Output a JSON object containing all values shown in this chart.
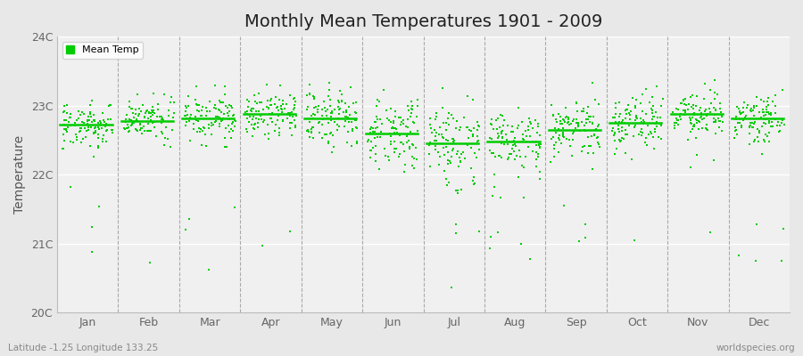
{
  "title": "Monthly Mean Temperatures 1901 - 2009",
  "ylabel": "Temperature",
  "xlabel_months": [
    "Jan",
    "Feb",
    "Mar",
    "Apr",
    "May",
    "Jun",
    "Jul",
    "Aug",
    "Sep",
    "Oct",
    "Nov",
    "Dec"
  ],
  "ylim": [
    20.0,
    24.0
  ],
  "yticks": [
    20.0,
    21.0,
    22.0,
    23.0,
    24.0
  ],
  "ytick_labels": [
    "20C",
    "21C",
    "22C",
    "23C",
    "24C"
  ],
  "dot_color": "#00CC00",
  "mean_line_color": "#00CC00",
  "background_color": "#E8E8E8",
  "plot_bg_color": "#F0F0F0",
  "vline_color": "#AAAAAA",
  "title_fontsize": 14,
  "axis_fontsize": 10,
  "tick_fontsize": 9,
  "subtitle_left": "Latitude -1.25 Longitude 133.25",
  "subtitle_right": "worldspecies.org",
  "years": 109,
  "monthly_means": [
    22.73,
    22.78,
    22.82,
    22.88,
    22.82,
    22.6,
    22.45,
    22.48,
    22.65,
    22.75,
    22.88,
    22.82
  ],
  "monthly_stds": [
    0.18,
    0.18,
    0.18,
    0.18,
    0.22,
    0.27,
    0.3,
    0.27,
    0.22,
    0.2,
    0.18,
    0.18
  ],
  "random_seed": 42
}
